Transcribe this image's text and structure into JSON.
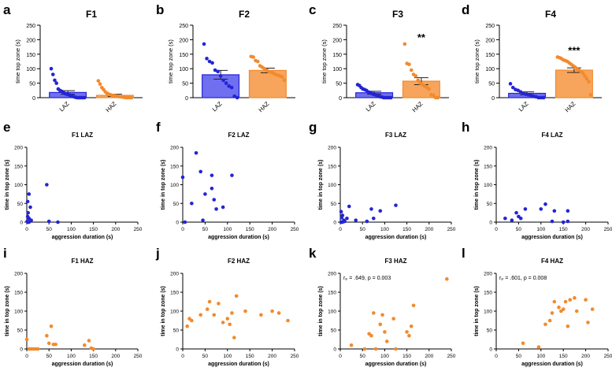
{
  "colors": {
    "laz": "#2424d6",
    "laz_fill": "#6f6ff0",
    "haz": "#f28a2e",
    "haz_fill": "#f7a55c",
    "axis": "#000000"
  },
  "chart_data": [
    {
      "id": "a",
      "panel_letter": "a",
      "type": "bar",
      "title": "F1",
      "ylabel": "time top zone (s)",
      "ylim": [
        0,
        250
      ],
      "yticks": [
        0,
        50,
        100,
        150,
        200,
        250
      ],
      "categories": [
        "LAZ",
        "HAZ"
      ],
      "values": [
        18,
        8
      ],
      "sem": [
        6,
        4
      ],
      "significance": [
        "",
        ""
      ],
      "points": [
        [
          100,
          80,
          60,
          50,
          30,
          25,
          22,
          18,
          14,
          12,
          10,
          8,
          5,
          3,
          1,
          0,
          0,
          0,
          0,
          0
        ],
        [
          58,
          47,
          35,
          28,
          20,
          15,
          12,
          10,
          8,
          7,
          6,
          5,
          4,
          3,
          2,
          1,
          0,
          0,
          0,
          0
        ]
      ]
    },
    {
      "id": "b",
      "panel_letter": "b",
      "type": "bar",
      "title": "F2",
      "ylabel": "time top zone (s)",
      "ylim": [
        0,
        250
      ],
      "yticks": [
        0,
        50,
        100,
        150,
        200,
        250
      ],
      "categories": [
        "LAZ",
        "HAZ"
      ],
      "values": [
        79,
        94
      ],
      "sem": [
        15,
        8
      ],
      "significance": [
        "",
        ""
      ],
      "points": [
        [
          185,
          135,
          125,
          120,
          95,
          90,
          75,
          60,
          50,
          40,
          35,
          5,
          0
        ],
        [
          142,
          140,
          128,
          125,
          110,
          105,
          100,
          95,
          90,
          88,
          85,
          80,
          78,
          75,
          72,
          60
        ]
      ]
    },
    {
      "id": "c",
      "panel_letter": "c",
      "type": "bar",
      "title": "F3",
      "ylabel": "time top zone (s)",
      "ylim": [
        0,
        250
      ],
      "yticks": [
        0,
        50,
        100,
        150,
        200,
        250
      ],
      "categories": [
        "LAZ",
        "HAZ"
      ],
      "values": [
        17,
        57
      ],
      "sem": [
        5,
        12
      ],
      "significance": [
        "",
        "**"
      ],
      "points": [
        [
          45,
          42,
          35,
          30,
          28,
          25,
          20,
          18,
          15,
          12,
          10,
          8,
          5,
          3,
          2,
          0,
          0,
          0,
          0,
          0
        ],
        [
          185,
          118,
          115,
          95,
          80,
          75,
          60,
          50,
          45,
          40,
          35,
          30,
          10,
          8,
          0,
          0
        ]
      ]
    },
    {
      "id": "d",
      "panel_letter": "d",
      "type": "bar",
      "title": "F4",
      "ylabel": "time top zone (s)",
      "ylim": [
        0,
        250
      ],
      "yticks": [
        0,
        50,
        100,
        150,
        200,
        250
      ],
      "categories": [
        "LAZ",
        "HAZ"
      ],
      "values": [
        15,
        95
      ],
      "sem": [
        5,
        8
      ],
      "significance": [
        "",
        "***"
      ],
      "points": [
        [
          48,
          35,
          28,
          25,
          20,
          15,
          12,
          10,
          8,
          5,
          3,
          0,
          0,
          0
        ],
        [
          140,
          138,
          135,
          130,
          128,
          125,
          120,
          115,
          110,
          105,
          100,
          95,
          90,
          85,
          75,
          65,
          55,
          10
        ]
      ]
    },
    {
      "id": "e",
      "panel_letter": "e",
      "type": "scatter",
      "title": "F1 LAZ",
      "series_group": "laz",
      "xlabel": "aggression duration (s)",
      "ylabel": "time in top zone (s)",
      "xlim": [
        0,
        250
      ],
      "ylim": [
        0,
        200
      ],
      "xticks": [
        0,
        50,
        100,
        150,
        200,
        250
      ],
      "yticks": [
        0,
        50,
        100,
        150,
        200
      ],
      "annotation": "",
      "points": [
        [
          2,
          55
        ],
        [
          5,
          75
        ],
        [
          8,
          40
        ],
        [
          3,
          25
        ],
        [
          2,
          15
        ],
        [
          5,
          10
        ],
        [
          10,
          5
        ],
        [
          1,
          2
        ],
        [
          3,
          0
        ],
        [
          5,
          0
        ],
        [
          45,
          100
        ],
        [
          70,
          0
        ],
        [
          50,
          2
        ]
      ]
    },
    {
      "id": "f",
      "panel_letter": "f",
      "type": "scatter",
      "title": "F2 LAZ",
      "series_group": "laz",
      "xlabel": "aggression duration (s)",
      "ylabel": "time in top zone (s)",
      "xlim": [
        0,
        250
      ],
      "ylim": [
        0,
        200
      ],
      "xticks": [
        0,
        50,
        100,
        150,
        200,
        250
      ],
      "yticks": [
        0,
        50,
        100,
        150,
        200
      ],
      "annotation": "",
      "points": [
        [
          30,
          185
        ],
        [
          40,
          135
        ],
        [
          65,
          125
        ],
        [
          110,
          125
        ],
        [
          0,
          120
        ],
        [
          65,
          90
        ],
        [
          50,
          75
        ],
        [
          70,
          60
        ],
        [
          90,
          40
        ],
        [
          20,
          50
        ],
        [
          45,
          5
        ],
        [
          75,
          35
        ],
        [
          5,
          0
        ]
      ]
    },
    {
      "id": "g",
      "panel_letter": "g",
      "type": "scatter",
      "title": "F3 LAZ",
      "series_group": "laz",
      "xlabel": "aggression duration (s)",
      "ylabel": "time in top zone (s)",
      "xlim": [
        0,
        250
      ],
      "ylim": [
        0,
        200
      ],
      "xticks": [
        0,
        50,
        100,
        150,
        200,
        250
      ],
      "yticks": [
        0,
        50,
        100,
        150,
        200
      ],
      "annotation": "",
      "points": [
        [
          2,
          28
        ],
        [
          5,
          18
        ],
        [
          3,
          12
        ],
        [
          8,
          5
        ],
        [
          2,
          0
        ],
        [
          5,
          0
        ],
        [
          10,
          2
        ],
        [
          20,
          42
        ],
        [
          15,
          10
        ],
        [
          35,
          5
        ],
        [
          70,
          35
        ],
        [
          90,
          30
        ],
        [
          125,
          45
        ],
        [
          75,
          10
        ],
        [
          60,
          2
        ]
      ]
    },
    {
      "id": "h",
      "panel_letter": "h",
      "type": "scatter",
      "title": "F4 LAZ",
      "series_group": "laz",
      "xlabel": "aggression duration (s)",
      "ylabel": "time in top zone (s)",
      "xlim": [
        0,
        250
      ],
      "ylim": [
        0,
        200
      ],
      "xticks": [
        0,
        50,
        100,
        150,
        200,
        250
      ],
      "yticks": [
        0,
        50,
        100,
        150,
        200
      ],
      "annotation": "",
      "points": [
        [
          20,
          10
        ],
        [
          35,
          5
        ],
        [
          45,
          25
        ],
        [
          50,
          15
        ],
        [
          55,
          10
        ],
        [
          65,
          35
        ],
        [
          100,
          35
        ],
        [
          110,
          48
        ],
        [
          130,
          30
        ],
        [
          160,
          30
        ],
        [
          125,
          2
        ],
        [
          150,
          0
        ],
        [
          160,
          2
        ]
      ]
    },
    {
      "id": "i",
      "panel_letter": "i",
      "type": "scatter",
      "title": "F1 HAZ",
      "series_group": "haz",
      "xlabel": "aggression duration (s)",
      "ylabel": "time in top zone (s)",
      "xlim": [
        0,
        250
      ],
      "ylim": [
        0,
        200
      ],
      "xticks": [
        0,
        50,
        100,
        150,
        200,
        250
      ],
      "yticks": [
        0,
        50,
        100,
        150,
        200
      ],
      "annotation": "",
      "points": [
        [
          0,
          25
        ],
        [
          5,
          0
        ],
        [
          10,
          0
        ],
        [
          15,
          0
        ],
        [
          20,
          0
        ],
        [
          25,
          0
        ],
        [
          45,
          35
        ],
        [
          50,
          15
        ],
        [
          55,
          60
        ],
        [
          60,
          12
        ],
        [
          65,
          12
        ],
        [
          130,
          10
        ],
        [
          140,
          22
        ],
        [
          145,
          2
        ],
        [
          150,
          0
        ]
      ]
    },
    {
      "id": "j",
      "panel_letter": "j",
      "type": "scatter",
      "title": "F2 HAZ",
      "series_group": "haz",
      "xlabel": "aggression duration (s)",
      "ylabel": "time in top zone (s)",
      "xlim": [
        0,
        250
      ],
      "ylim": [
        0,
        200
      ],
      "xticks": [
        0,
        50,
        100,
        150,
        200,
        250
      ],
      "yticks": [
        0,
        50,
        100,
        150,
        200
      ],
      "annotation": "",
      "points": [
        [
          10,
          60
        ],
        [
          15,
          80
        ],
        [
          20,
          75
        ],
        [
          40,
          90
        ],
        [
          55,
          105
        ],
        [
          60,
          125
        ],
        [
          70,
          90
        ],
        [
          80,
          120
        ],
        [
          90,
          70
        ],
        [
          100,
          80
        ],
        [
          105,
          65
        ],
        [
          110,
          95
        ],
        [
          115,
          30
        ],
        [
          120,
          140
        ],
        [
          140,
          100
        ],
        [
          175,
          90
        ],
        [
          200,
          100
        ],
        [
          215,
          95
        ],
        [
          235,
          75
        ]
      ]
    },
    {
      "id": "k",
      "panel_letter": "k",
      "type": "scatter",
      "title": "F3 HAZ",
      "series_group": "haz",
      "xlabel": "aggression duration (s)",
      "ylabel": "time in top zone (s)",
      "xlim": [
        0,
        250
      ],
      "ylim": [
        0,
        200
      ],
      "xticks": [
        0,
        50,
        100,
        150,
        200,
        250
      ],
      "yticks": [
        0,
        50,
        100,
        150,
        200
      ],
      "annotation": "rₚ = .649, p = 0.003",
      "points": [
        [
          25,
          10
        ],
        [
          55,
          0
        ],
        [
          65,
          40
        ],
        [
          70,
          35
        ],
        [
          75,
          95
        ],
        [
          80,
          0
        ],
        [
          90,
          65
        ],
        [
          95,
          90
        ],
        [
          100,
          45
        ],
        [
          105,
          20
        ],
        [
          120,
          80
        ],
        [
          125,
          0
        ],
        [
          150,
          45
        ],
        [
          155,
          35
        ],
        [
          160,
          60
        ],
        [
          165,
          115
        ],
        [
          240,
          185
        ]
      ]
    },
    {
      "id": "l",
      "panel_letter": "l",
      "type": "scatter",
      "title": "F4 HAZ",
      "series_group": "haz",
      "xlabel": "aggression duration (s)",
      "ylabel": "time in top zone (s)",
      "xlim": [
        0,
        250
      ],
      "ylim": [
        0,
        200
      ],
      "xticks": [
        0,
        50,
        100,
        150,
        200,
        250
      ],
      "yticks": [
        0,
        50,
        100,
        150,
        200
      ],
      "annotation": "rₚ = .601, p = 0.008",
      "points": [
        [
          60,
          15
        ],
        [
          95,
          5
        ],
        [
          110,
          65
        ],
        [
          120,
          75
        ],
        [
          125,
          95
        ],
        [
          130,
          125
        ],
        [
          140,
          110
        ],
        [
          145,
          100
        ],
        [
          150,
          105
        ],
        [
          155,
          125
        ],
        [
          160,
          60
        ],
        [
          165,
          130
        ],
        [
          175,
          135
        ],
        [
          180,
          100
        ],
        [
          200,
          130
        ],
        [
          205,
          70
        ],
        [
          215,
          105
        ]
      ]
    }
  ]
}
